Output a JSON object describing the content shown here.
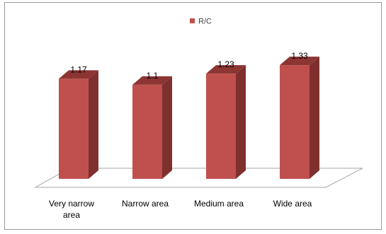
{
  "chart_data": {
    "type": "bar",
    "style": "3d-column",
    "categories": [
      "Very narrow area",
      "Narrow area",
      "Medium area",
      "Wide area"
    ],
    "category_lines": [
      [
        "Very narrow",
        "area"
      ],
      [
        "Narrow area"
      ],
      [
        "Medium area"
      ],
      [
        "Wide area"
      ]
    ],
    "series": [
      {
        "name": "R/C",
        "values": [
          1.17,
          1.1,
          1.23,
          1.33
        ],
        "labels": [
          "1.17",
          "1.1",
          "1.23",
          "1.33"
        ],
        "color": "#c0504d"
      }
    ],
    "legend_position": "top",
    "grid": false,
    "ylim": [
      0,
      1.5
    ]
  }
}
